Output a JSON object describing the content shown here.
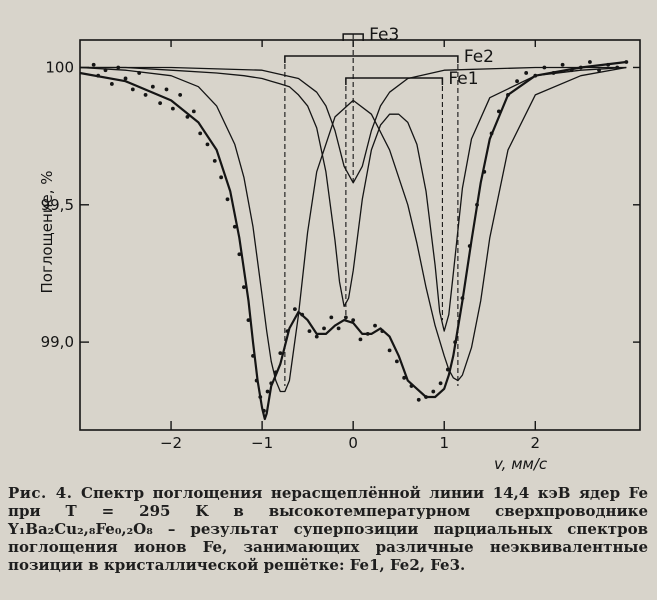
{
  "chart_data": {
    "type": "line",
    "xlabel": "v, мм/с",
    "ylabel": "Поглощение, %",
    "xlim": [
      -3.0,
      3.15
    ],
    "ylim": [
      98.68,
      100.1
    ],
    "x_ticks": [
      -2,
      -1,
      0,
      1,
      2
    ],
    "y_ticks": [
      99.0,
      99.5,
      100
    ],
    "y_tick_labels": [
      "99,0",
      "99,5",
      "100"
    ],
    "sites": [
      {
        "name": "Fe1",
        "center": 0.45,
        "splitting": 1.06,
        "line_positions": [
          -0.08,
          0.98
        ]
      },
      {
        "name": "Fe2",
        "center": 0.2,
        "splitting": 1.9,
        "line_positions": [
          -0.75,
          1.15
        ]
      },
      {
        "name": "Fe3",
        "center": 0.0,
        "splitting": 0.0,
        "line_positions": [
          0.0
        ]
      }
    ],
    "series": [
      {
        "name": "Fe1",
        "type": "line",
        "x": [
          -3.0,
          -2.5,
          -2.0,
          -1.5,
          -1.2,
          -1.0,
          -0.9,
          -0.8,
          -0.7,
          -0.6,
          -0.5,
          -0.4,
          -0.3,
          -0.2,
          -0.15,
          -0.1,
          -0.05,
          0.0,
          0.1,
          0.2,
          0.3,
          0.4,
          0.5,
          0.6,
          0.7,
          0.8,
          0.9,
          0.95,
          1.0,
          1.05,
          1.1,
          1.2,
          1.3,
          1.5,
          2.0,
          2.5,
          3.0
        ],
        "y": [
          100.0,
          100.0,
          99.99,
          99.98,
          99.97,
          99.96,
          99.95,
          99.94,
          99.93,
          99.9,
          99.86,
          99.78,
          99.62,
          99.37,
          99.22,
          99.13,
          99.16,
          99.26,
          99.52,
          99.7,
          99.79,
          99.83,
          99.83,
          99.8,
          99.72,
          99.55,
          99.28,
          99.11,
          99.04,
          99.1,
          99.25,
          99.56,
          99.74,
          99.89,
          99.97,
          99.99,
          100.0
        ]
      },
      {
        "name": "Fe2",
        "type": "line",
        "x": [
          -3.0,
          -2.5,
          -2.0,
          -1.7,
          -1.5,
          -1.3,
          -1.2,
          -1.1,
          -1.0,
          -0.95,
          -0.9,
          -0.85,
          -0.8,
          -0.75,
          -0.7,
          -0.6,
          -0.5,
          -0.4,
          -0.2,
          0.0,
          0.2,
          0.4,
          0.6,
          0.7,
          0.8,
          0.9,
          1.0,
          1.05,
          1.1,
          1.15,
          1.2,
          1.3,
          1.4,
          1.5,
          1.7,
          2.0,
          2.5,
          3.0
        ],
        "y": [
          100.0,
          99.99,
          99.97,
          99.93,
          99.86,
          99.72,
          99.6,
          99.42,
          99.17,
          99.04,
          98.93,
          98.86,
          98.82,
          98.82,
          98.86,
          99.1,
          99.4,
          99.62,
          99.82,
          99.88,
          99.83,
          99.7,
          99.5,
          99.36,
          99.2,
          99.06,
          98.95,
          98.9,
          98.87,
          98.86,
          98.88,
          98.98,
          99.15,
          99.38,
          99.7,
          99.9,
          99.97,
          100.0
        ]
      },
      {
        "name": "Fe3",
        "type": "line",
        "x": [
          -3.0,
          -2.0,
          -1.0,
          -0.6,
          -0.4,
          -0.3,
          -0.2,
          -0.1,
          0.0,
          0.1,
          0.2,
          0.3,
          0.4,
          0.6,
          1.0,
          2.0,
          3.0
        ],
        "y": [
          100.0,
          100.0,
          99.99,
          99.96,
          99.91,
          99.86,
          99.77,
          99.64,
          99.58,
          99.64,
          99.77,
          99.86,
          99.91,
          99.96,
          99.99,
          100.0,
          100.0
        ]
      },
      {
        "name": "",
        "type": "line",
        "x": [
          -3.0,
          -2.5,
          -2.0,
          -1.7,
          -1.5,
          -1.35,
          -1.25,
          -1.15,
          -1.1,
          -1.05,
          -1.0,
          -0.97,
          -0.95,
          -0.92,
          -0.9,
          -0.85,
          -0.8,
          -0.7,
          -0.6,
          -0.5,
          -0.4,
          -0.3,
          -0.2,
          -0.1,
          0.0,
          0.1,
          0.2,
          0.3,
          0.4,
          0.5,
          0.6,
          0.7,
          0.8,
          0.9,
          1.0,
          1.05,
          1.1,
          1.2,
          1.3,
          1.4,
          1.5,
          1.7,
          2.0,
          2.5,
          3.0
        ],
        "y": [
          99.98,
          99.95,
          99.88,
          99.8,
          99.7,
          99.55,
          99.38,
          99.15,
          99.0,
          98.86,
          98.76,
          98.72,
          98.74,
          98.8,
          98.84,
          98.88,
          98.92,
          99.05,
          99.11,
          99.08,
          99.03,
          99.03,
          99.06,
          99.08,
          99.07,
          99.03,
          99.03,
          99.05,
          99.02,
          98.95,
          98.86,
          98.83,
          98.8,
          98.8,
          98.83,
          98.88,
          98.95,
          99.15,
          99.37,
          99.58,
          99.74,
          99.9,
          99.97,
          100.0,
          100.02
        ]
      },
      {
        "name": "",
        "type": "scatter",
        "x": [
          -2.85,
          -2.8,
          -2.72,
          -2.65,
          -2.58,
          -2.5,
          -2.42,
          -2.35,
          -2.28,
          -2.2,
          -2.12,
          -2.05,
          -1.98,
          -1.9,
          -1.82,
          -1.75,
          -1.68,
          -1.6,
          -1.52,
          -1.45,
          -1.38,
          -1.3,
          -1.25,
          -1.2,
          -1.15,
          -1.1,
          -1.06,
          -1.02,
          -0.98,
          -0.94,
          -0.9,
          -0.85,
          -0.8,
          -0.72,
          -0.64,
          -0.56,
          -0.48,
          -0.4,
          -0.32,
          -0.24,
          -0.16,
          -0.08,
          0.0,
          0.08,
          0.16,
          0.24,
          0.32,
          0.4,
          0.48,
          0.56,
          0.64,
          0.72,
          0.8,
          0.88,
          0.96,
          1.04,
          1.12,
          1.2,
          1.28,
          1.36,
          1.44,
          1.52,
          1.6,
          1.7,
          1.8,
          1.9,
          2.0,
          2.1,
          2.2,
          2.3,
          2.4,
          2.5,
          2.6,
          2.7,
          2.8,
          2.9,
          3.0
        ],
        "y": [
          100.01,
          99.97,
          99.99,
          99.94,
          100.0,
          99.96,
          99.92,
          99.98,
          99.9,
          99.93,
          99.87,
          99.92,
          99.85,
          99.9,
          99.82,
          99.84,
          99.76,
          99.72,
          99.66,
          99.6,
          99.52,
          99.42,
          99.32,
          99.2,
          99.08,
          98.95,
          98.86,
          98.8,
          98.75,
          98.82,
          98.85,
          98.89,
          98.96,
          99.04,
          99.12,
          99.1,
          99.04,
          99.02,
          99.05,
          99.09,
          99.05,
          99.09,
          99.08,
          99.01,
          99.03,
          99.06,
          99.04,
          98.97,
          98.93,
          98.87,
          98.84,
          98.79,
          98.8,
          98.82,
          98.85,
          98.9,
          99.0,
          99.16,
          99.35,
          99.5,
          99.62,
          99.76,
          99.84,
          99.9,
          99.95,
          99.98,
          99.97,
          100.0,
          99.98,
          100.01,
          99.99,
          100.0,
          100.02,
          99.99,
          100.01,
          100.0,
          100.02
        ]
      }
    ]
  },
  "caption": {
    "label": "Рис. 4.",
    "text": "Спектр поглощения нерасщеплённой линии 14,4 кэВ ядер Fe при T = 295 K в высокотемпературном сверхпроводнике Y₁Ba₂Cu₂,₈Fe₀,₂O₈ – результат суперпозиции парциальных спектров поглощения ионов Fe, занимающих различные неэквивалентные позиции в кристаллической решётке: Fe1, Fe2, Fe3."
  },
  "colors": {
    "ink": "#151515",
    "paper": "#d8d4cb"
  }
}
